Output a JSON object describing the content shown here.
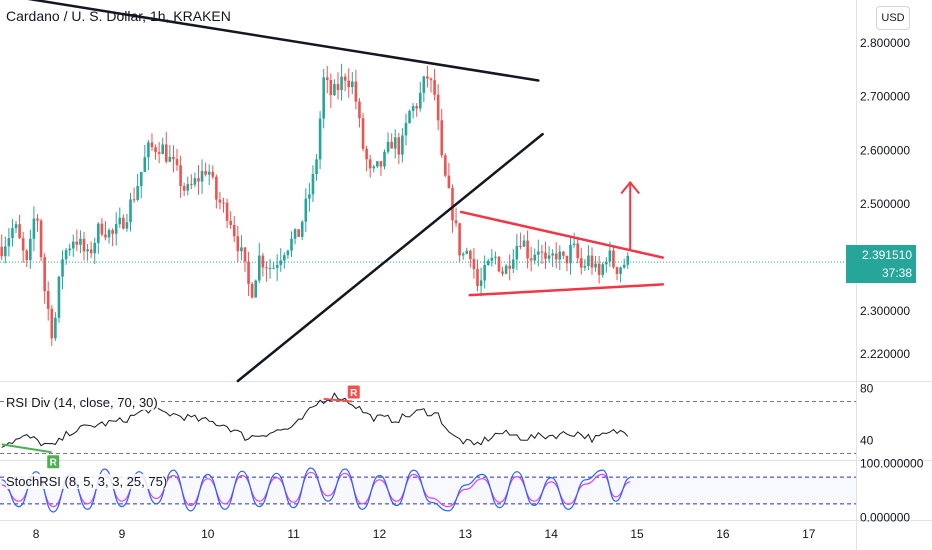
{
  "header": {
    "title": "Cardano / U. S. Dollar, 1h, KRAKEN"
  },
  "currency_button": "USD",
  "current_price": {
    "price": "2.391510",
    "countdown": "37:38"
  },
  "indicators": {
    "rsi_label": "RSI Div (14, close, 70, 30)",
    "stoch_label": "StochRSI (8, 5, 3, 3, 25, 75)"
  },
  "colors": {
    "up": "#26a69a",
    "down": "#ef5350",
    "trendline": "#131722",
    "pattern": "#f23645",
    "rsi_line": "#131722",
    "stoch_k": "#2962ff",
    "stoch_d": "#e040fb",
    "band": "#2a2ebd"
  },
  "chart_data": [
    {
      "type": "candlestick",
      "title": "Cardano / U. S. Dollar, 1h, KRAKEN",
      "x_tick_labels": [
        "8",
        "9",
        "10",
        "11",
        "12",
        "13",
        "14",
        "15",
        "16",
        "17"
      ],
      "y_tick_labels": [
        "2.800000",
        "2.700000",
        "2.600000",
        "2.500000",
        "2.300000",
        "2.220000"
      ],
      "y_range": [
        2.17,
        2.88
      ],
      "x_range": [
        7.58,
        17.55
      ],
      "last_price": 2.39151,
      "price_path": [
        [
          7.6,
          2.42
        ],
        [
          7.75,
          2.46
        ],
        [
          7.9,
          2.38
        ],
        [
          8.0,
          2.5
        ],
        [
          8.1,
          2.34
        ],
        [
          8.2,
          2.25
        ],
        [
          8.3,
          2.4
        ],
        [
          8.45,
          2.44
        ],
        [
          8.6,
          2.4
        ],
        [
          8.75,
          2.46
        ],
        [
          8.9,
          2.44
        ],
        [
          9.05,
          2.48
        ],
        [
          9.15,
          2.52
        ],
        [
          9.3,
          2.6
        ],
        [
          9.45,
          2.61
        ],
        [
          9.6,
          2.57
        ],
        [
          9.75,
          2.52
        ],
        [
          9.9,
          2.55
        ],
        [
          10.0,
          2.57
        ],
        [
          10.1,
          2.51
        ],
        [
          10.25,
          2.48
        ],
        [
          10.4,
          2.4
        ],
        [
          10.5,
          2.33
        ],
        [
          10.6,
          2.4
        ],
        [
          10.75,
          2.38
        ],
        [
          10.9,
          2.42
        ],
        [
          11.05,
          2.44
        ],
        [
          11.25,
          2.56
        ],
        [
          11.35,
          2.73
        ],
        [
          11.45,
          2.7
        ],
        [
          11.6,
          2.74
        ],
        [
          11.7,
          2.72
        ],
        [
          11.8,
          2.61
        ],
        [
          11.9,
          2.55
        ],
        [
          12.05,
          2.58
        ],
        [
          12.15,
          2.62
        ],
        [
          12.25,
          2.6
        ],
        [
          12.35,
          2.67
        ],
        [
          12.45,
          2.69
        ],
        [
          12.55,
          2.74
        ],
        [
          12.65,
          2.7
        ],
        [
          12.72,
          2.58
        ],
        [
          12.8,
          2.52
        ],
        [
          12.87,
          2.47
        ],
        [
          12.95,
          2.4
        ],
        [
          13.05,
          2.42
        ],
        [
          13.15,
          2.34
        ],
        [
          13.25,
          2.38
        ],
        [
          13.35,
          2.4
        ],
        [
          13.45,
          2.37
        ],
        [
          13.55,
          2.41
        ],
        [
          13.65,
          2.44
        ],
        [
          13.75,
          2.4
        ],
        [
          13.85,
          2.42
        ],
        [
          13.95,
          2.38
        ],
        [
          14.05,
          2.41
        ],
        [
          14.15,
          2.39
        ],
        [
          14.25,
          2.42
        ],
        [
          14.35,
          2.38
        ],
        [
          14.45,
          2.4
        ],
        [
          14.55,
          2.36
        ],
        [
          14.65,
          2.41
        ],
        [
          14.75,
          2.38
        ],
        [
          14.85,
          2.39
        ],
        [
          14.92,
          2.392
        ]
      ],
      "annotations": {
        "upper_trendline": [
          [
            7.6,
            2.89
          ],
          [
            13.85,
            2.73
          ]
        ],
        "lower_trendline": [
          [
            10.35,
            2.17
          ],
          [
            13.9,
            2.63
          ]
        ],
        "pennant_upper": [
          [
            12.95,
            2.485
          ],
          [
            15.3,
            2.4
          ]
        ],
        "pennant_lower": [
          [
            13.05,
            2.33
          ],
          [
            15.3,
            2.35
          ]
        ],
        "breakout_arrow": [
          [
            14.92,
            2.415
          ],
          [
            14.92,
            2.54
          ]
        ]
      }
    },
    {
      "type": "line",
      "title": "RSI Div (14, close, 70, 30)",
      "y_tick_labels": [
        "80",
        "40"
      ],
      "y_range": [
        25,
        85
      ],
      "levels": [
        70,
        30
      ],
      "divergence_markers": [
        "R",
        "R"
      ],
      "series": [
        {
          "values": [
            [
              7.6,
              37
            ],
            [
              7.9,
              43
            ],
            [
              8.1,
              37
            ],
            [
              8.2,
              35
            ],
            [
              8.4,
              47
            ],
            [
              8.7,
              52
            ],
            [
              9.0,
              55
            ],
            [
              9.3,
              64
            ],
            [
              9.6,
              60
            ],
            [
              9.9,
              56
            ],
            [
              10.2,
              52
            ],
            [
              10.45,
              42
            ],
            [
              10.7,
              46
            ],
            [
              11.0,
              50
            ],
            [
              11.3,
              70
            ],
            [
              11.5,
              75
            ],
            [
              11.7,
              68
            ],
            [
              11.9,
              58
            ],
            [
              12.2,
              56
            ],
            [
              12.5,
              63
            ],
            [
              12.68,
              60
            ],
            [
              12.85,
              43
            ],
            [
              13.1,
              36
            ],
            [
              13.4,
              46
            ],
            [
              13.7,
              42
            ],
            [
              14.0,
              44
            ],
            [
              14.3,
              46
            ],
            [
              14.5,
              41
            ],
            [
              14.75,
              47
            ],
            [
              14.92,
              46
            ]
          ]
        }
      ]
    },
    {
      "type": "line",
      "title": "StochRSI (8, 5, 3, 3, 25, 75)",
      "y_tick_labels": [
        "100.000000",
        "0.000000"
      ],
      "y_range": [
        -5,
        105
      ],
      "levels": [
        75,
        25
      ],
      "series": [
        {
          "values": [
            [
              7.6,
              70
            ],
            [
              7.8,
              20
            ],
            [
              8.0,
              85
            ],
            [
              8.2,
              10
            ],
            [
              8.4,
              80
            ],
            [
              8.6,
              15
            ],
            [
              8.8,
              90
            ],
            [
              9.0,
              20
            ],
            [
              9.2,
              85
            ],
            [
              9.4,
              25
            ],
            [
              9.6,
              88
            ],
            [
              9.8,
              12
            ],
            [
              10.0,
              80
            ],
            [
              10.2,
              15
            ],
            [
              10.4,
              86
            ],
            [
              10.6,
              20
            ],
            [
              10.8,
              82
            ],
            [
              11.0,
              18
            ],
            [
              11.2,
              92
            ],
            [
              11.4,
              30
            ],
            [
              11.6,
              90
            ],
            [
              11.8,
              15
            ],
            [
              12.0,
              78
            ],
            [
              12.2,
              22
            ],
            [
              12.4,
              88
            ],
            [
              12.6,
              28
            ],
            [
              12.8,
              12
            ],
            [
              13.0,
              60
            ],
            [
              13.2,
              80
            ],
            [
              13.4,
              18
            ],
            [
              13.6,
              85
            ],
            [
              13.8,
              22
            ],
            [
              14.0,
              74
            ],
            [
              14.2,
              15
            ],
            [
              14.4,
              70
            ],
            [
              14.6,
              88
            ],
            [
              14.75,
              30
            ],
            [
              14.92,
              74
            ]
          ]
        },
        {
          "values": [
            [
              7.6,
              60
            ],
            [
              7.8,
              30
            ],
            [
              8.0,
              75
            ],
            [
              8.2,
              20
            ],
            [
              8.4,
              70
            ],
            [
              8.6,
              25
            ],
            [
              8.8,
              80
            ],
            [
              9.0,
              30
            ],
            [
              9.2,
              76
            ],
            [
              9.4,
              35
            ],
            [
              9.6,
              78
            ],
            [
              9.8,
              22
            ],
            [
              10.0,
              72
            ],
            [
              10.2,
              25
            ],
            [
              10.4,
              78
            ],
            [
              10.6,
              30
            ],
            [
              10.8,
              74
            ],
            [
              11.0,
              28
            ],
            [
              11.2,
              84
            ],
            [
              11.4,
              40
            ],
            [
              11.6,
              82
            ],
            [
              11.8,
              25
            ],
            [
              12.0,
              70
            ],
            [
              12.2,
              30
            ],
            [
              12.4,
              80
            ],
            [
              12.6,
              36
            ],
            [
              12.8,
              20
            ],
            [
              13.0,
              52
            ],
            [
              13.2,
              72
            ],
            [
              13.4,
              28
            ],
            [
              13.6,
              76
            ],
            [
              13.8,
              30
            ],
            [
              14.0,
              66
            ],
            [
              14.2,
              24
            ],
            [
              14.4,
              62
            ],
            [
              14.6,
              80
            ],
            [
              14.75,
              38
            ],
            [
              14.92,
              66
            ]
          ]
        }
      ]
    }
  ]
}
